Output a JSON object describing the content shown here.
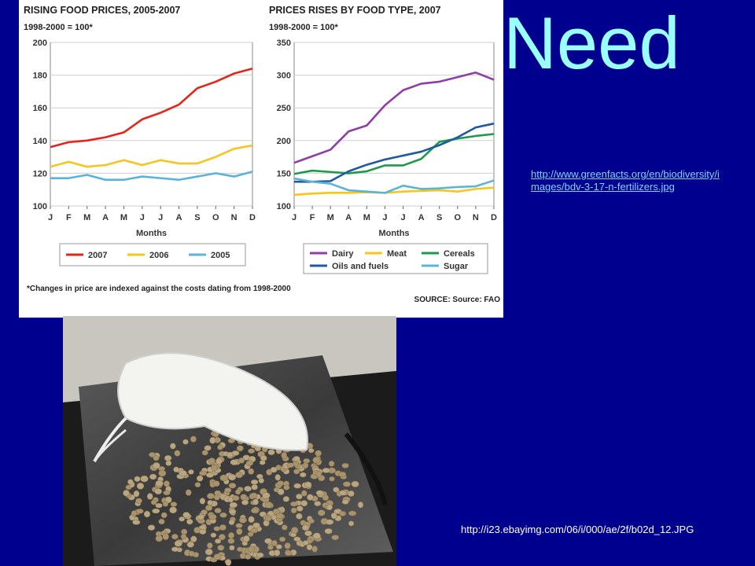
{
  "slide": {
    "title": "Need",
    "link": "http://www.greenfacts.org/en/biodiversity/images/bdv-3-17-n-fertilizers.jpg",
    "photo_caption": "http://i23.ebayimg.com/06/i/000/ae/2f/b02d_12.JPG"
  },
  "chart_footnote": "*Changes in price are indexed against the costs dating from 1998-2000",
  "chart_source": "SOURCE: Source: FAO",
  "colors": {
    "background": "#00008f",
    "title": "#99ffff",
    "red": "#e8231a",
    "yellow": "#f7c51e",
    "lightblue": "#5ab4d8",
    "purple": "#8e3ea6",
    "green": "#1e9a4a",
    "darkblue": "#1e5aa0"
  },
  "icons": {
    "photo": "soybean-bag-photo"
  },
  "chart_data": [
    {
      "type": "line",
      "title": "RISING FOOD PRICES, 2005-2007",
      "subtitle": "1998-2000 = 100*",
      "xlabel": "Months",
      "ylabel": "",
      "categories": [
        "J",
        "F",
        "M",
        "A",
        "M",
        "J",
        "J",
        "A",
        "S",
        "O",
        "N",
        "D"
      ],
      "ylim": [
        100,
        200
      ],
      "yticks": [
        100,
        120,
        140,
        160,
        180,
        200
      ],
      "grid": true,
      "legend": "bottom",
      "series": [
        {
          "name": "2007",
          "color": "#e8231a",
          "values": [
            136,
            139,
            140,
            142,
            145,
            153,
            157,
            162,
            172,
            176,
            181,
            184
          ]
        },
        {
          "name": "2006",
          "color": "#f7c51e",
          "values": [
            124,
            127,
            124,
            125,
            128,
            125,
            128,
            126,
            126,
            130,
            135,
            137
          ]
        },
        {
          "name": "2005",
          "color": "#5ab4d8",
          "values": [
            117,
            117,
            119,
            116,
            116,
            118,
            117,
            116,
            118,
            120,
            118,
            121
          ]
        }
      ]
    },
    {
      "type": "line",
      "title": "PRICES RISES BY FOOD TYPE, 2007",
      "subtitle": "1998-2000 = 100*",
      "xlabel": "Months",
      "ylabel": "",
      "categories": [
        "J",
        "F",
        "M",
        "A",
        "M",
        "J",
        "J",
        "A",
        "S",
        "O",
        "N",
        "D"
      ],
      "ylim": [
        100,
        350
      ],
      "yticks": [
        100,
        150,
        200,
        250,
        300,
        350
      ],
      "grid": true,
      "legend": "bottom",
      "series": [
        {
          "name": "Dairy",
          "color": "#8e3ea6",
          "values": [
            166,
            176,
            186,
            214,
            223,
            254,
            277,
            287,
            290,
            297,
            304,
            293
          ]
        },
        {
          "name": "Meat",
          "color": "#f7c51e",
          "values": [
            117,
            119,
            120,
            120,
            121,
            120,
            122,
            123,
            124,
            122,
            126,
            128
          ]
        },
        {
          "name": "Cereals",
          "color": "#1e9a4a",
          "values": [
            149,
            154,
            152,
            150,
            153,
            162,
            162,
            172,
            198,
            203,
            207,
            210
          ]
        },
        {
          "name": "Oils and fuels",
          "color": "#1e5aa0",
          "values": [
            137,
            137,
            138,
            153,
            163,
            171,
            177,
            183,
            193,
            205,
            220,
            226
          ]
        },
        {
          "name": "Sugar",
          "color": "#5ab4d8",
          "values": [
            142,
            137,
            134,
            124,
            122,
            120,
            131,
            126,
            127,
            129,
            130,
            139
          ]
        }
      ]
    }
  ]
}
